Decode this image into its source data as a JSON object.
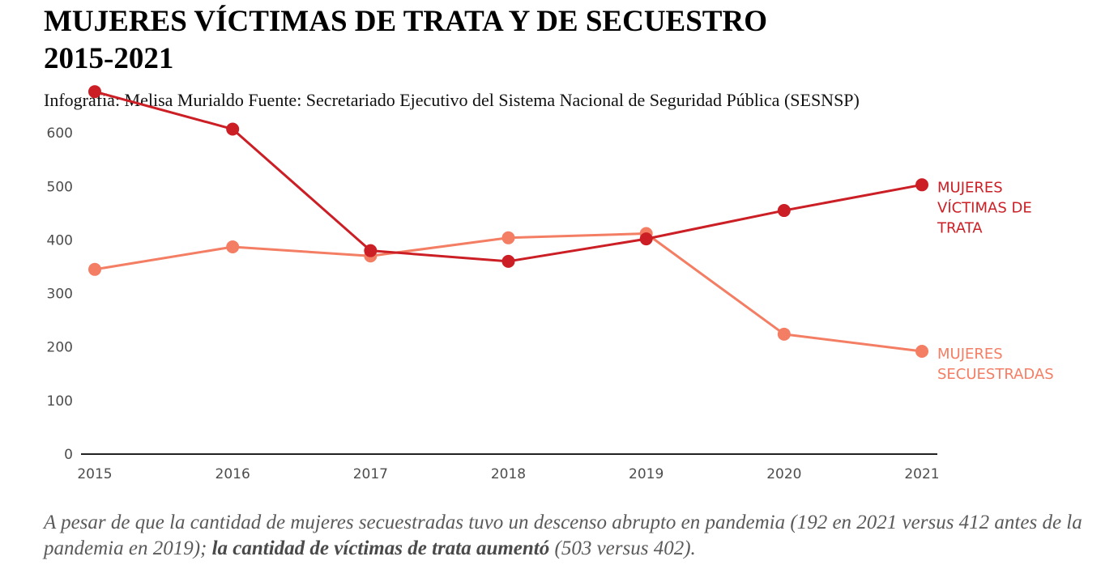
{
  "header": {
    "title_line1": "MUJERES VÍCTIMAS DE TRATA Y DE SECUESTRO",
    "title_line2": "2015-2021",
    "subtitle": "Infografía: Melisa Murialdo Fuente: Secretariado Ejecutivo del Sistema Nacional de Seguridad Pública (SESNSP)"
  },
  "chart_data": {
    "type": "line",
    "title": "MUJERES VÍCTIMAS DE TRATA Y DE SECUESTRO 2015-2021",
    "xlabel": "",
    "ylabel": "",
    "categories": [
      "2015",
      "2016",
      "2017",
      "2018",
      "2019",
      "2020",
      "2021"
    ],
    "yticks": [
      0,
      100,
      200,
      300,
      400,
      500,
      600
    ],
    "ylim": [
      0,
      700
    ],
    "grid": false,
    "legend": "direct labels at right end of lines",
    "series": [
      {
        "name": "MUJERES SECUESTRADAS",
        "label_lines": [
          "MUJERES",
          "SECUESTRADAS"
        ],
        "color": "#f47e64",
        "values": [
          345,
          387,
          370,
          404,
          412,
          224,
          192
        ]
      },
      {
        "name": "MUJERES VÍCTIMAS DE TRATA",
        "label_lines": [
          "MUJERES",
          "VÍCTIMAS DE",
          "TRATA"
        ],
        "color": "#cb1f25",
        "values": [
          677,
          607,
          380,
          360,
          402,
          455,
          503
        ]
      }
    ]
  },
  "caption": {
    "part1": "A pesar de que la cantidad de mujeres secuestradas tuvo un descenso abrupto en pandemia (192 en 2021 versus 412 antes de la pandemia en 2019); ",
    "bold": "la cantidad de víctimas de trata aumentó",
    "part2": " (503 versus 402)."
  }
}
